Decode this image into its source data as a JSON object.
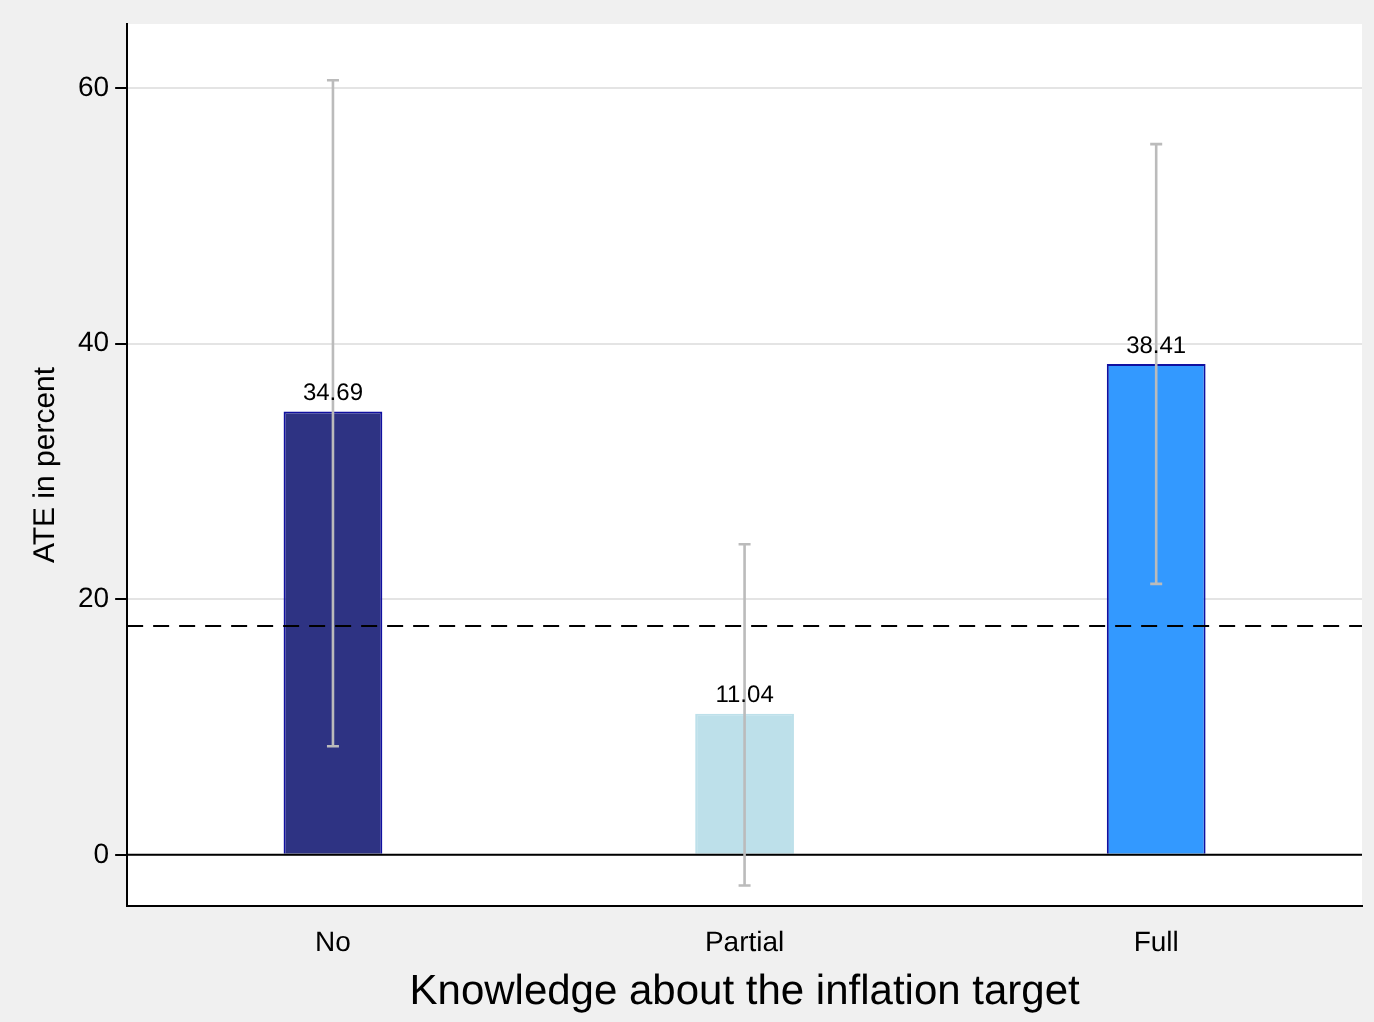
{
  "chart_data": {
    "type": "bar",
    "xlabel": "Knowledge about the inflation target",
    "ylabel": "ATE in percent",
    "categories": [
      "No",
      "Partial",
      "Full"
    ],
    "values": [
      34.69,
      11.04,
      38.41
    ],
    "colors": [
      "#2e3383",
      "#bde0ea",
      "#3399ff"
    ],
    "errors": [
      [
        8.5,
        60.6
      ],
      [
        -2.4,
        24.3
      ],
      [
        21.2,
        55.6
      ]
    ],
    "data_labels": true,
    "ylim": [
      -4,
      65
    ],
    "yticks": [
      0,
      20,
      40,
      60
    ],
    "grid": "y",
    "ref_lines": [
      {
        "axis": "y",
        "value": 17.9,
        "line_style": "dashed",
        "color": "#000000"
      }
    ],
    "legend": false
  }
}
